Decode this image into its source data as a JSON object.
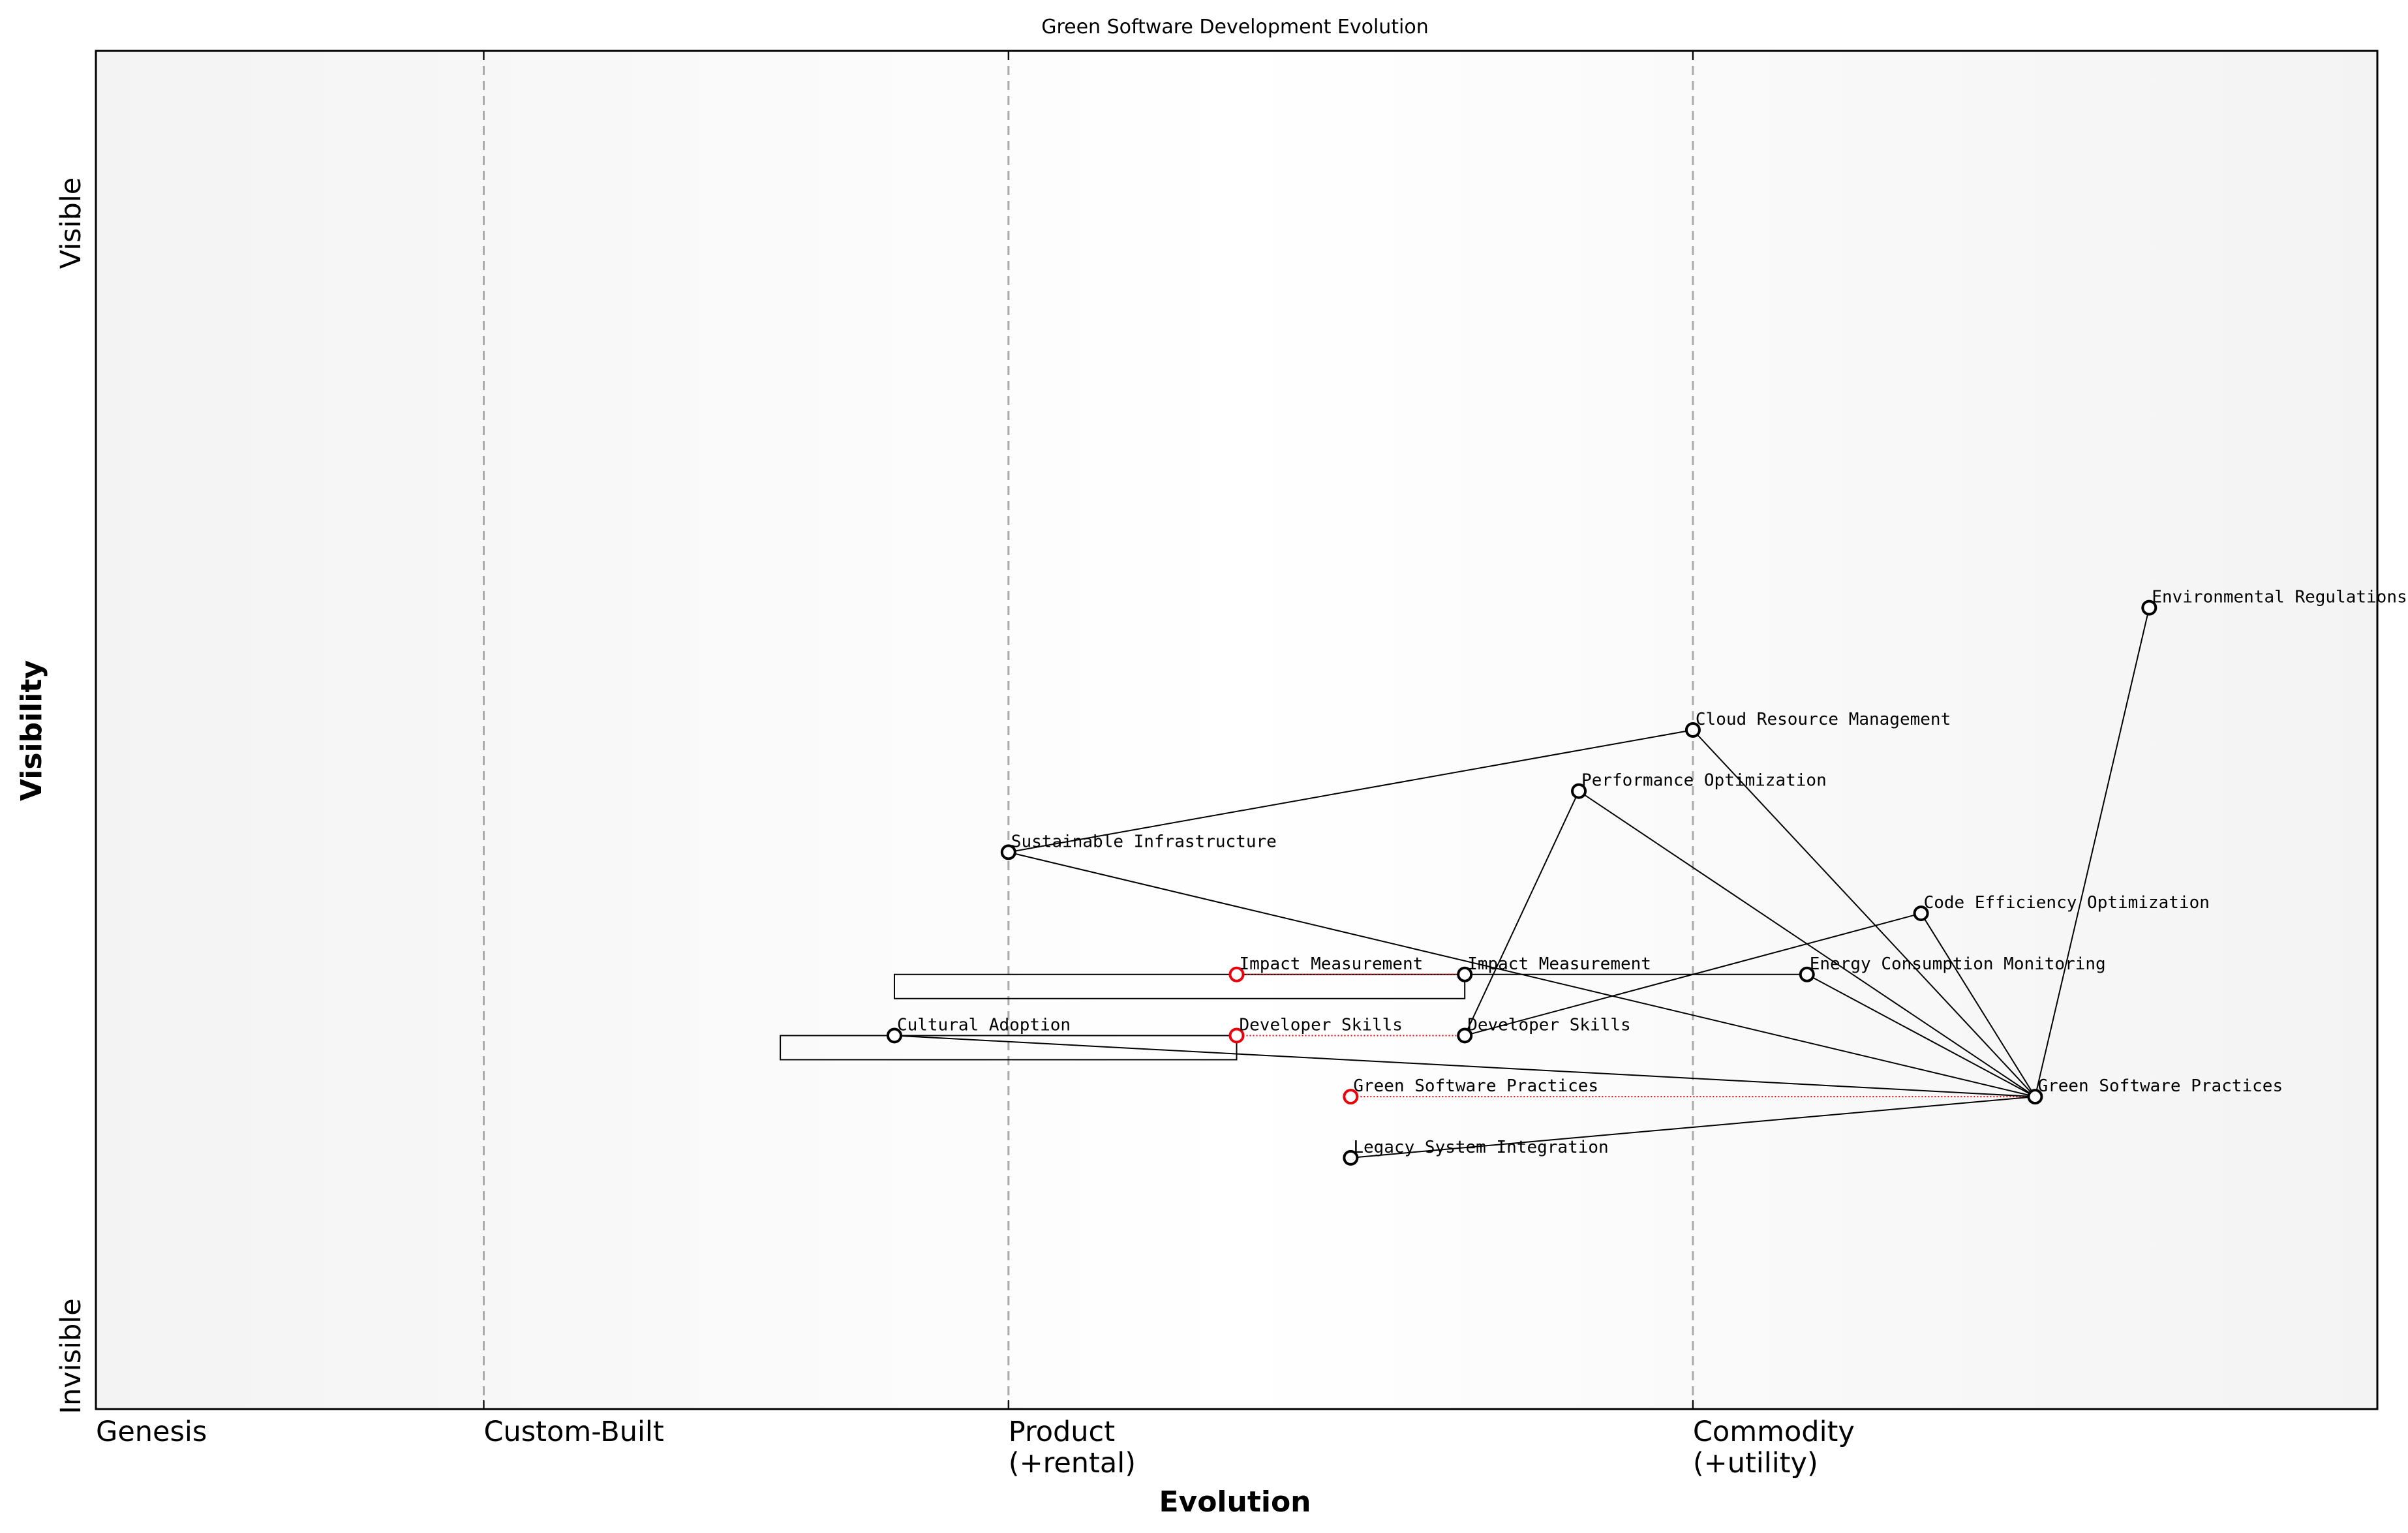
{
  "title": "Green Software Development Evolution",
  "x_axis": {
    "label": "Evolution",
    "stages": [
      {
        "line1": "Genesis",
        "line2": "",
        "at": 0.0
      },
      {
        "line1": "Custom-Built",
        "line2": "",
        "at": 0.17
      },
      {
        "line1": "Product",
        "line2": "(+rental)",
        "at": 0.4
      },
      {
        "line1": "Commodity",
        "line2": "(+utility)",
        "at": 0.7
      }
    ]
  },
  "y_axis": {
    "label": "Visibility",
    "top_label": "Visible",
    "bottom_label": "Invisible"
  },
  "colors": {
    "component": "#000000",
    "evolved": "#e8000b",
    "grid": "#aaaaaa"
  },
  "components": [
    {
      "id": "env",
      "name": "Environmental Regulations",
      "evolution": 0.9,
      "visibility": 0.59
    },
    {
      "id": "cloud",
      "name": "Cloud Resource Management",
      "evolution": 0.7,
      "visibility": 0.5
    },
    {
      "id": "perf",
      "name": "Performance Optimization",
      "evolution": 0.65,
      "visibility": 0.455
    },
    {
      "id": "infra",
      "name": "Sustainable Infrastructure",
      "evolution": 0.4,
      "visibility": 0.41
    },
    {
      "id": "code",
      "name": "Code Efficiency Optimization",
      "evolution": 0.8,
      "visibility": 0.365
    },
    {
      "id": "impact",
      "name": "Impact Measurement",
      "evolution": 0.6,
      "visibility": 0.32
    },
    {
      "id": "energy",
      "name": "Energy Consumption Monitoring",
      "evolution": 0.75,
      "visibility": 0.32
    },
    {
      "id": "culture",
      "name": "Cultural Adoption",
      "evolution": 0.35,
      "visibility": 0.275
    },
    {
      "id": "skills",
      "name": "Developer Skills",
      "evolution": 0.6,
      "visibility": 0.275
    },
    {
      "id": "gsp",
      "name": "Green Software Practices",
      "evolution": 0.85,
      "visibility": 0.23
    },
    {
      "id": "legacy",
      "name": "Legacy System Integration",
      "evolution": 0.55,
      "visibility": 0.185
    }
  ],
  "evolved_components": [
    {
      "name": "Impact Measurement",
      "evolution": 0.5,
      "visibility": 0.32,
      "from": "impact"
    },
    {
      "name": "Developer Skills",
      "evolution": 0.5,
      "visibility": 0.275,
      "from": "skills"
    },
    {
      "name": "Green Software Practices",
      "evolution": 0.55,
      "visibility": 0.23,
      "from": "gsp"
    }
  ],
  "links": [
    [
      "env",
      "gsp"
    ],
    [
      "cloud",
      "gsp"
    ],
    [
      "cloud",
      "infra"
    ],
    [
      "perf",
      "gsp"
    ],
    [
      "perf",
      "skills"
    ],
    [
      "infra",
      "gsp"
    ],
    [
      "code",
      "gsp"
    ],
    [
      "code",
      "skills"
    ],
    [
      "energy",
      "gsp"
    ],
    [
      "energy",
      "impact"
    ],
    [
      "culture",
      "gsp"
    ],
    [
      "legacy",
      "gsp"
    ]
  ],
  "pipelines": [
    {
      "component": "impact",
      "from": 0.35,
      "to": 0.6
    },
    {
      "component": "culture",
      "from": 0.3,
      "to": 0.5
    }
  ]
}
